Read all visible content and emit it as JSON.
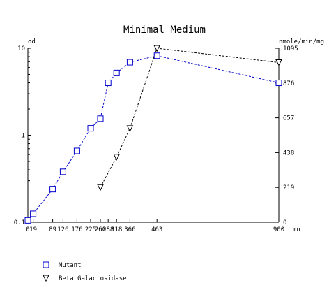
{
  "chart_data": {
    "type": "line",
    "title": "Minimal Medium",
    "xlabel": "mn",
    "ylabel_left": "od",
    "ylabel_right": "nmole/min/mg",
    "x_ticks": [
      0,
      19,
      89,
      126,
      176,
      225,
      260,
      288,
      318,
      366,
      463,
      900
    ],
    "x_tick_labels": [
      "0",
      "19",
      "89",
      "126",
      "176",
      "225",
      "260",
      "288",
      "318",
      "366",
      "463",
      "900"
    ],
    "xlim": [
      0,
      900
    ],
    "y_left": {
      "scale": "log",
      "lim": [
        0.1,
        10
      ],
      "ticks": [
        0.1,
        1,
        10
      ],
      "tick_labels": [
        "0.1",
        "1",
        "10"
      ]
    },
    "y_right": {
      "scale": "linear",
      "lim": [
        0,
        1095
      ],
      "ticks": [
        0,
        219,
        438,
        657,
        876,
        1095
      ],
      "tick_labels": [
        "0",
        "219",
        "438",
        "657",
        "876",
        "1095"
      ]
    },
    "grid": false,
    "legend_position": "bottom-left",
    "series": [
      {
        "name": "Mutant",
        "axis": "left",
        "color": "#0000cc",
        "marker": "square",
        "x": [
          0,
          19,
          89,
          126,
          176,
          225,
          260,
          288,
          318,
          366,
          463,
          900
        ],
        "y": [
          0.105,
          0.125,
          0.24,
          0.38,
          0.66,
          1.2,
          1.55,
          4.0,
          5.2,
          6.9,
          8.2,
          4.0
        ]
      },
      {
        "name": "Beta Galactosidase",
        "axis": "right",
        "color": "#000000",
        "marker": "triangle-down",
        "x": [
          260,
          318,
          366,
          463,
          900
        ],
        "y": [
          219,
          410,
          590,
          1095,
          1005
        ]
      }
    ]
  }
}
